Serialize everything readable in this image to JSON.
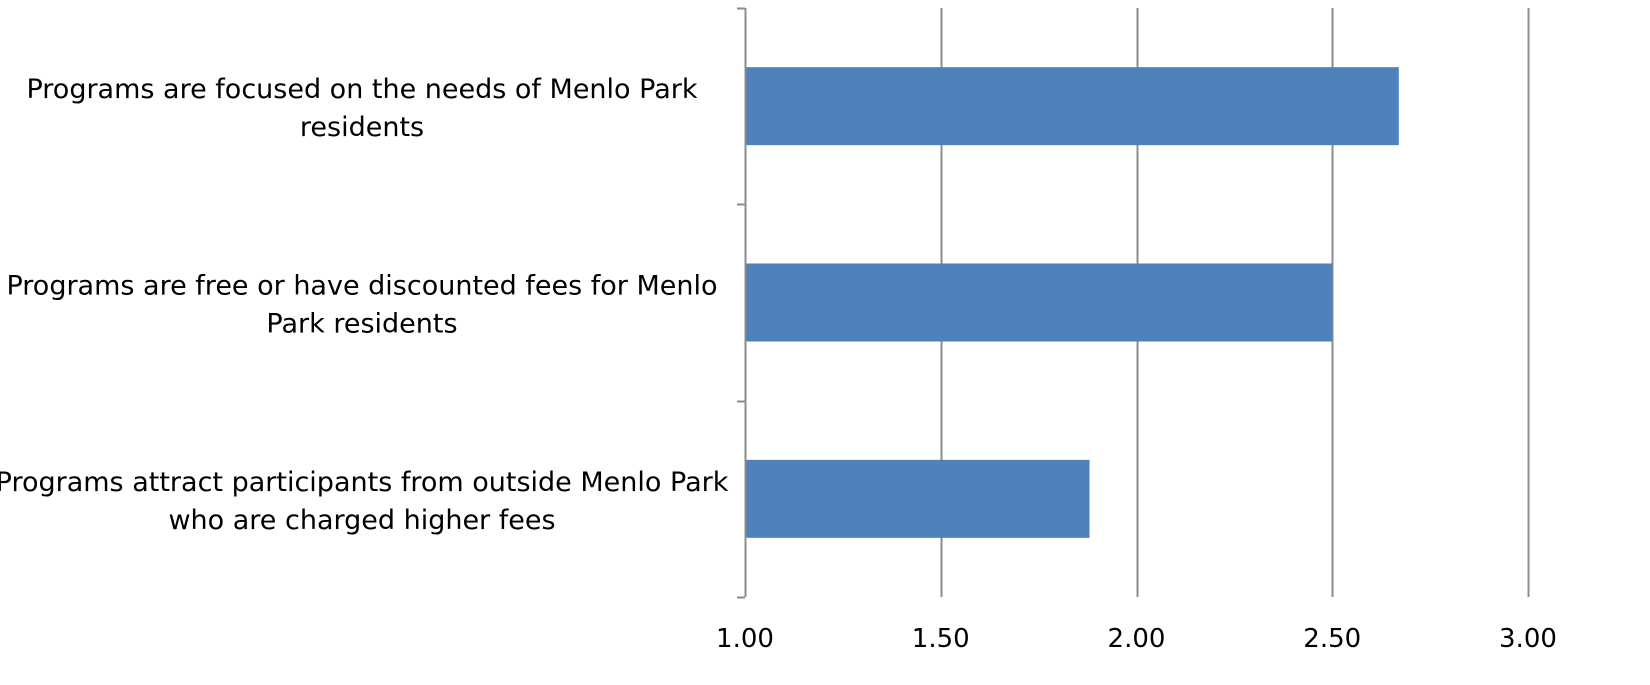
{
  "chart_data": {
    "type": "bar",
    "orientation": "horizontal",
    "title": "",
    "xlabel": "",
    "ylabel": "",
    "categories": [
      [
        "Programs are focused on the needs of Menlo Park",
        "residents"
      ],
      [
        "Programs are free or have discounted fees for Menlo",
        "Park residents"
      ],
      [
        "Programs attract participants from outside Menlo Park",
        "who are charged higher fees"
      ]
    ],
    "values": [
      2.67,
      2.5,
      1.88
    ],
    "xlim": [
      1.0,
      3.0
    ],
    "xticks": [
      "1.00",
      "1.50",
      "2.00",
      "2.50",
      "3.00"
    ],
    "grid": "vertical",
    "legend": "none",
    "bar_color": "#4F81BD",
    "grid_color": "#8C8C8C"
  }
}
